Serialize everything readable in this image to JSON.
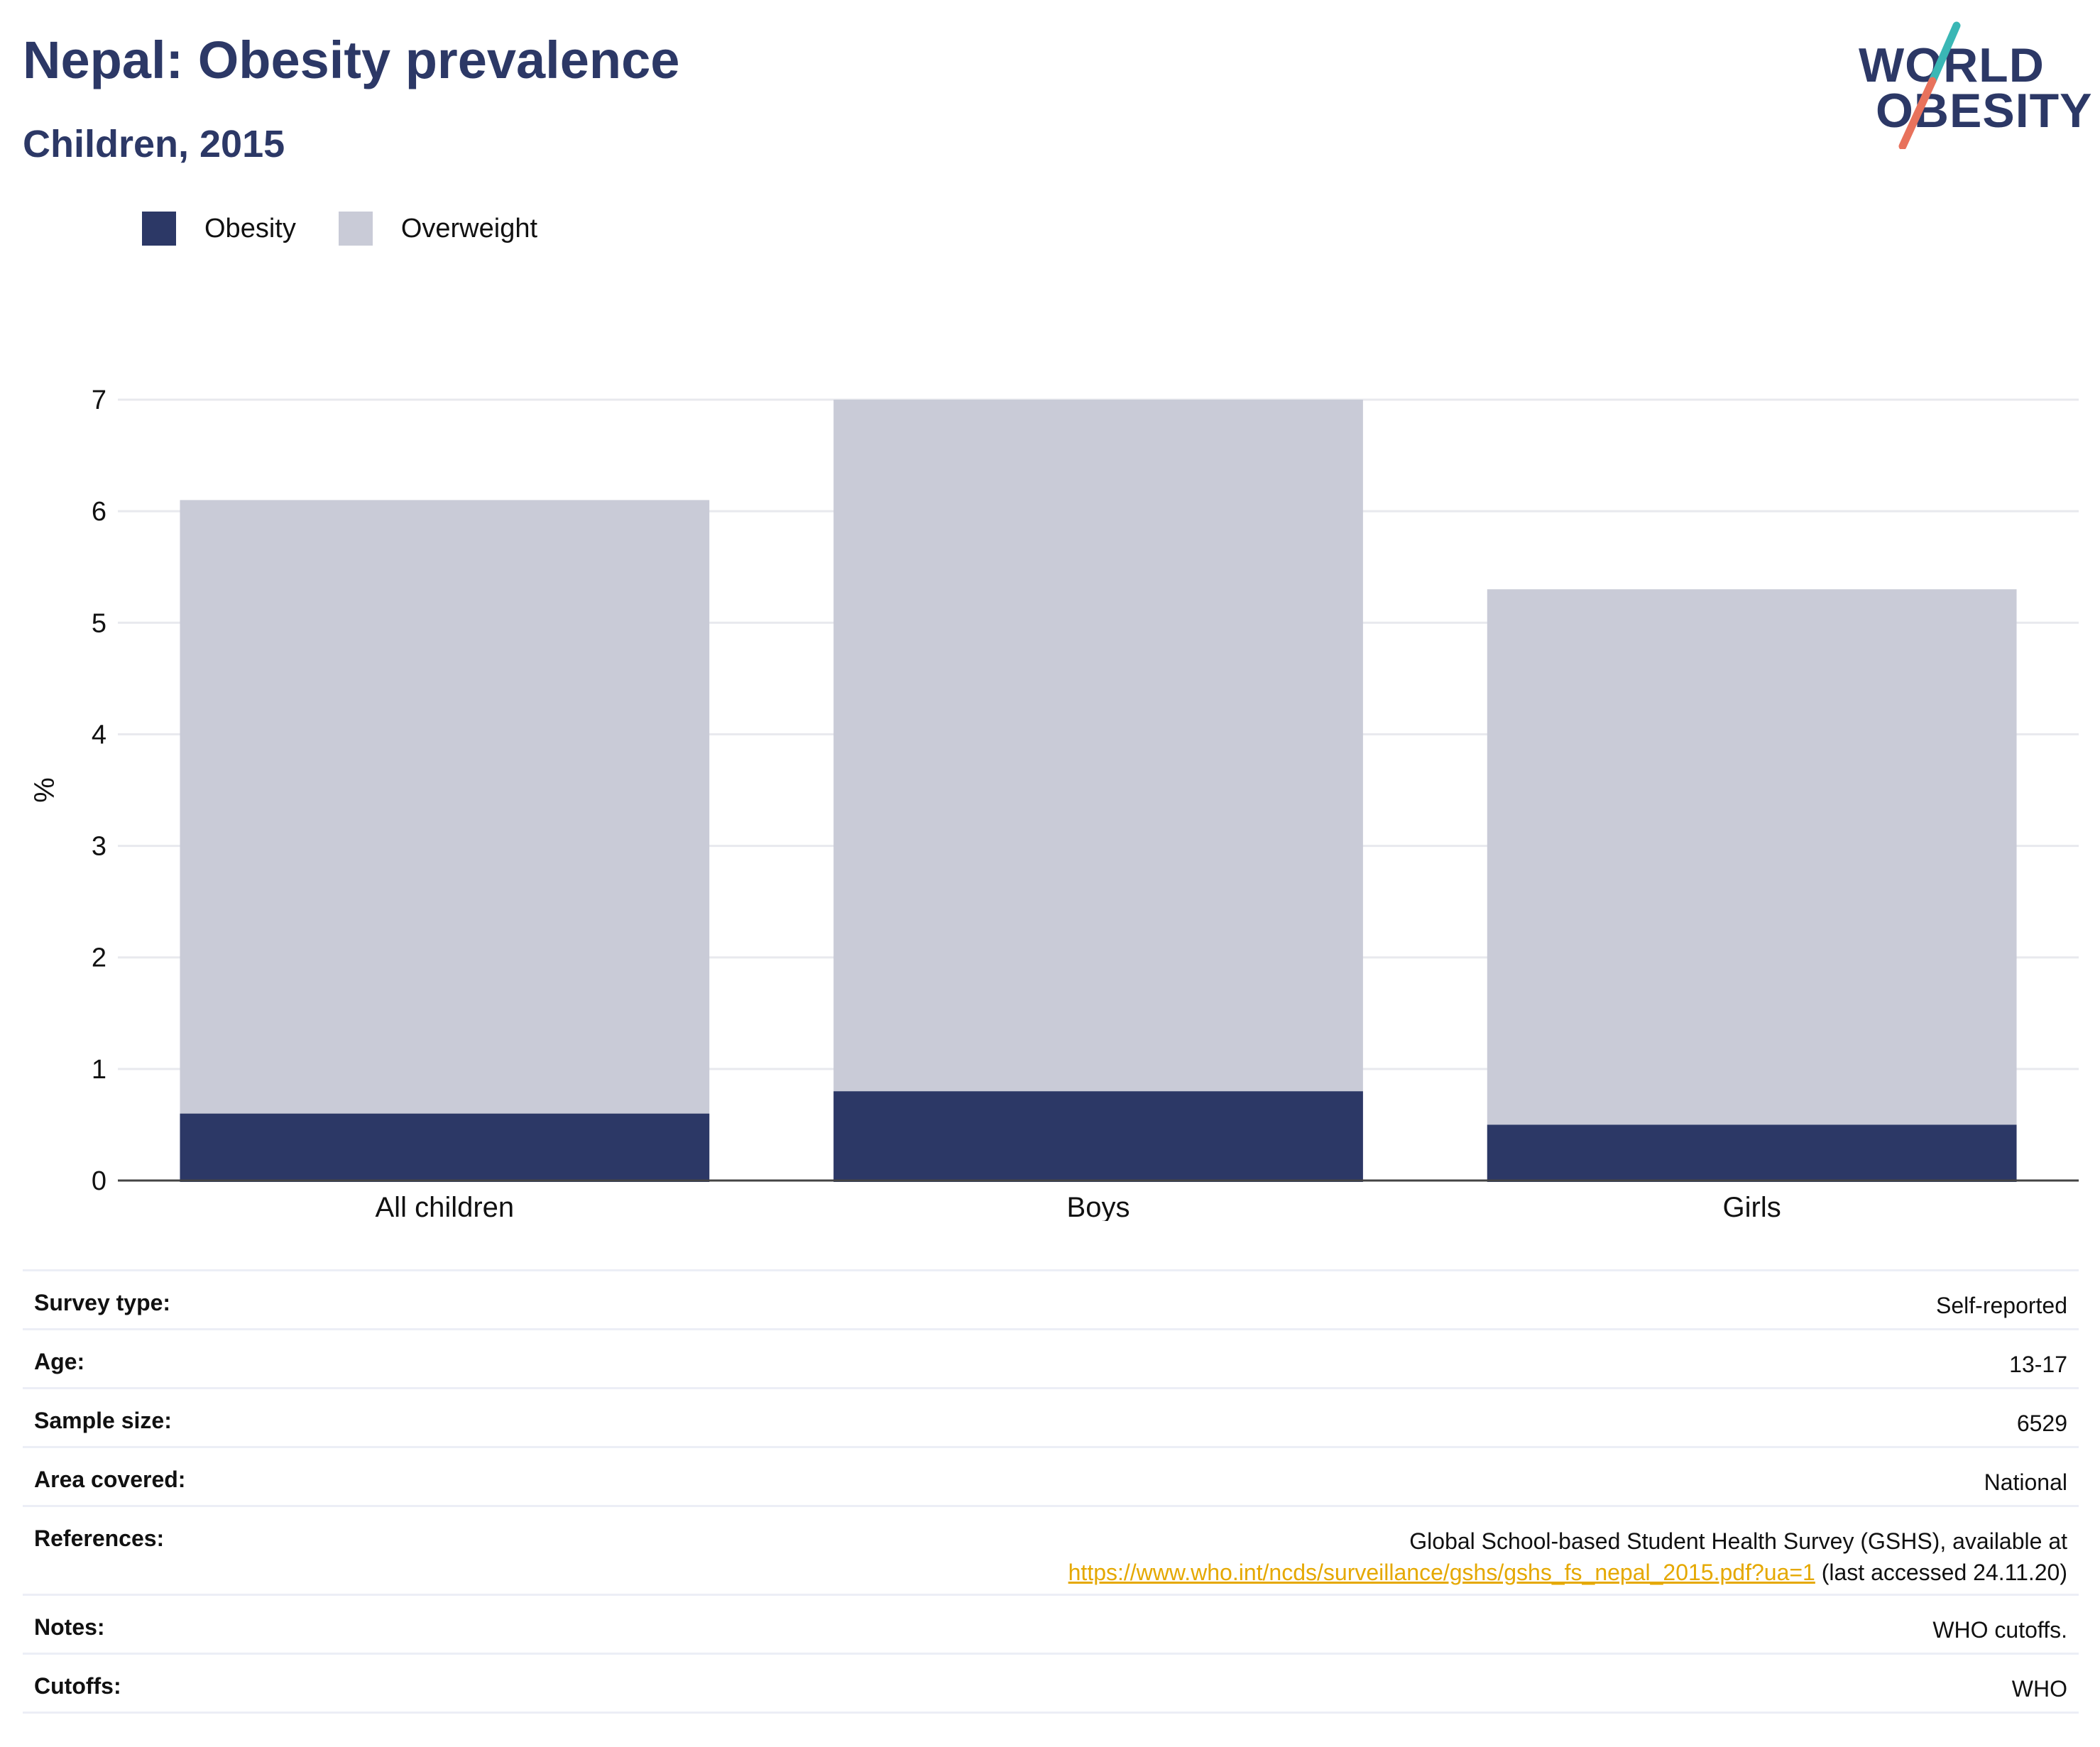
{
  "header": {
    "title": "Nepal: Obesity prevalence",
    "subtitle": "Children, 2015"
  },
  "logo": {
    "line1": "WORLD",
    "line2": "OBESITY",
    "accent_teal": "#3ab7b5",
    "accent_coral": "#e8725c"
  },
  "legend": [
    {
      "label": "Obesity",
      "color": "#2c3866"
    },
    {
      "label": "Overweight",
      "color": "#c9cbd7"
    }
  ],
  "chart_data": {
    "type": "bar",
    "stacked": false,
    "overlaid": true,
    "categories": [
      "All children",
      "Boys",
      "Girls"
    ],
    "series": [
      {
        "name": "Obesity",
        "values": [
          0.6,
          0.8,
          0.5
        ],
        "color": "#2c3866"
      },
      {
        "name": "Overweight",
        "values": [
          6.1,
          7.0,
          5.3
        ],
        "color": "#c9cbd7"
      }
    ],
    "ylabel": "%",
    "ylim": [
      0,
      7
    ],
    "yticks": [
      0,
      1,
      2,
      3,
      4,
      5,
      6,
      7
    ],
    "grid": true,
    "legend_position": "top-left"
  },
  "info_table": {
    "rows": [
      {
        "label": "Survey type:",
        "value": "Self-reported"
      },
      {
        "label": "Age:",
        "value": "13-17"
      },
      {
        "label": "Sample size:",
        "value": "6529"
      },
      {
        "label": "Area covered:",
        "value": "National"
      },
      {
        "label": "References:",
        "value": "Global School-based Student Health Survey (GSHS), available at",
        "link": "https://www.who.int/ncds/surveillance/gshs/gshs_fs_nepal_2015.pdf?ua=1",
        "suffix": " (last accessed 24.11.20)"
      },
      {
        "label": "Notes:",
        "value": "WHO cutoffs."
      },
      {
        "label": "Cutoffs:",
        "value": "WHO"
      }
    ]
  }
}
